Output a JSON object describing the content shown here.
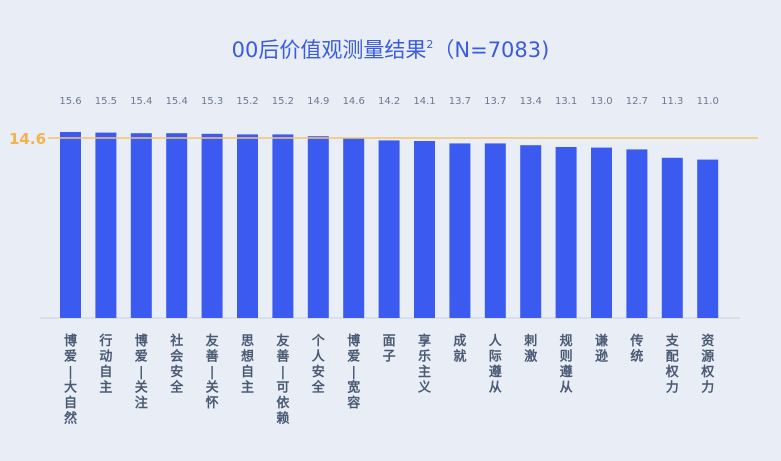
{
  "title": {
    "main": "00后价值观测量结果",
    "sup": "2",
    "suffix": "（N=7083)"
  },
  "reference": {
    "label": "14.6",
    "value": 14.6
  },
  "colors": {
    "bar": "#3b5bf0",
    "reference_line": "#f6c36a",
    "reference_label": "#f2b24c",
    "value_label": "#6b7890",
    "category_label": "#4a5a74",
    "title": "#3a5be0",
    "axis": "#c9d2e3"
  },
  "chart_data": {
    "type": "bar",
    "categories": [
      "博爱–大自然",
      "行动自主",
      "博爱–关注",
      "社会安全",
      "友善–关怀",
      "思想自主",
      "友善–可依赖",
      "个人安全",
      "博爱–宽容",
      "面子",
      "享乐主义",
      "成就",
      "人际遵从",
      "刺激",
      "规则遵从",
      "谦逊",
      "传统",
      "支配权力",
      "资源权力"
    ],
    "values": [
      15.6,
      15.5,
      15.4,
      15.4,
      15.3,
      15.2,
      15.2,
      14.9,
      14.6,
      14.2,
      14.1,
      13.7,
      13.7,
      13.4,
      13.1,
      13.0,
      12.7,
      11.3,
      11.0
    ],
    "value_labels": [
      "15.6",
      "15.5",
      "15.4",
      "15.4",
      "15.3",
      "15.2",
      "15.2",
      "14.9",
      "14.6",
      "14.2",
      "14.1",
      "13.7",
      "13.7",
      "13.4",
      "13.1",
      "13.0",
      "12.7",
      "11.3",
      "11.0"
    ],
    "reference_line": 14.6,
    "title": "00后价值观测量结果2（N=7083)"
  }
}
